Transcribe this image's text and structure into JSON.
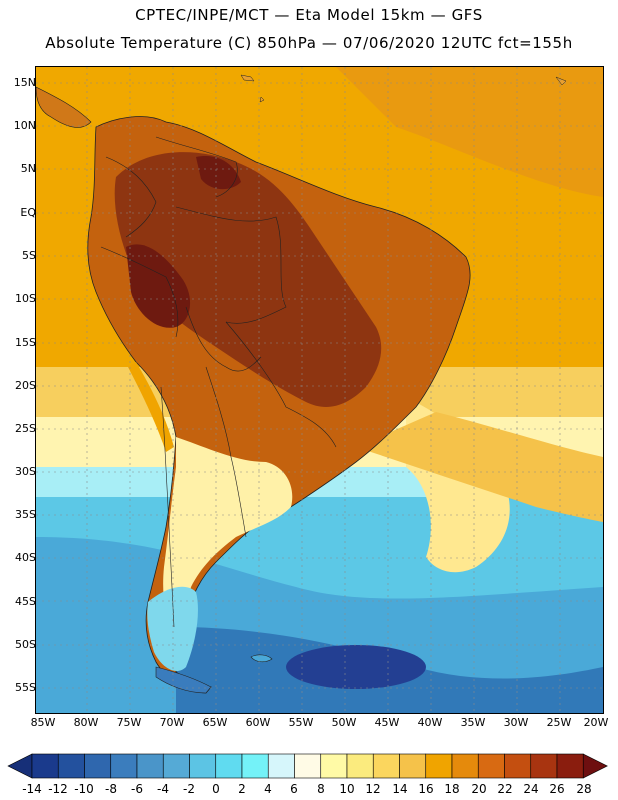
{
  "header": {
    "line1": "CPTEC/INPE/MCT —  Eta Model 15km — GFS",
    "line2": "Absolute Temperature (C) 850hPa — 07/06/2020 12UTC fct=155h"
  },
  "axes": {
    "lat_labels": [
      "15N",
      "10N",
      "5N",
      "EQ",
      "5S",
      "10S",
      "15S",
      "20S",
      "25S",
      "30S",
      "35S",
      "40S",
      "45S",
      "50S",
      "55S"
    ],
    "lon_labels": [
      "85W",
      "80W",
      "75W",
      "70W",
      "65W",
      "60W",
      "55W",
      "50W",
      "45W",
      "40W",
      "35W",
      "30W",
      "25W",
      "20W"
    ]
  },
  "colorbar": {
    "labels": [
      "-14",
      "-12",
      "-10",
      "-8",
      "-6",
      "-4",
      "-2",
      "0",
      "2",
      "4",
      "6",
      "8",
      "10",
      "12",
      "14",
      "16",
      "18",
      "20",
      "22",
      "24",
      "26",
      "28"
    ],
    "colors": [
      "#1a3a8c",
      "#23519e",
      "#2f67ae",
      "#3b7dbd",
      "#4a95c9",
      "#55aad6",
      "#5cc4e4",
      "#60dbf0",
      "#74f2f8",
      "#d6f6fb",
      "#fffbe6",
      "#fffaa6",
      "#fbeb7e",
      "#fbd65e",
      "#f5c24a",
      "#f0a400",
      "#e58a0c",
      "#d86a12",
      "#c44f10",
      "#a83410",
      "#8a1d0e"
    ],
    "low_arrow_color": "#162f78",
    "high_arrow_color": "#6e0f10"
  }
}
